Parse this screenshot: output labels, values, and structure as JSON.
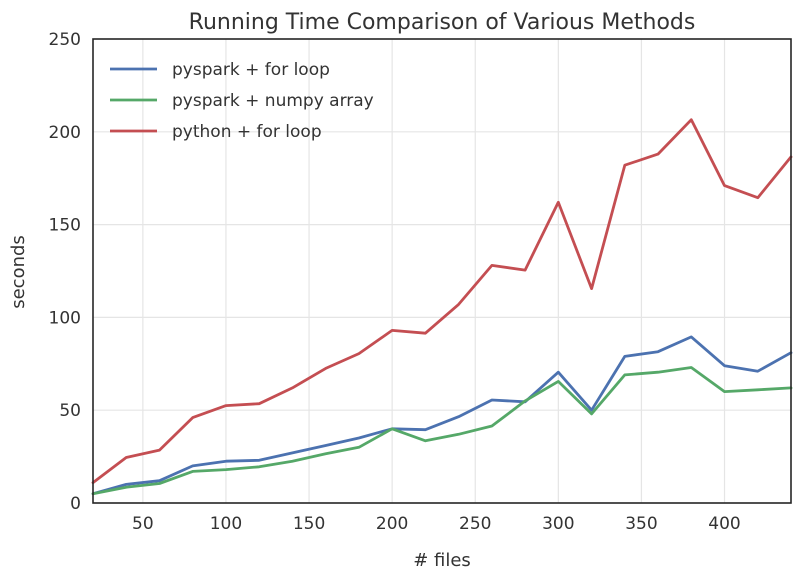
{
  "chart_data": {
    "type": "line",
    "title": "Running Time Comparison of Various Methods",
    "xlabel": "# files",
    "ylabel": "seconds",
    "xlim": [
      20,
      440
    ],
    "ylim": [
      0,
      250
    ],
    "x_ticks": [
      50,
      100,
      150,
      200,
      250,
      300,
      350,
      400
    ],
    "y_ticks": [
      0,
      50,
      100,
      150,
      200,
      250
    ],
    "grid": true,
    "legend_position": "top-left",
    "x": [
      20,
      40,
      60,
      80,
      100,
      120,
      140,
      160,
      180,
      200,
      220,
      240,
      260,
      280,
      300,
      320,
      340,
      360,
      380,
      400,
      420,
      440
    ],
    "series": [
      {
        "name": "pyspark + for loop",
        "color": "#4c72b0",
        "values": [
          5,
          10,
          12,
          20,
          22.5,
          23,
          27,
          31,
          35,
          40,
          39.5,
          46.5,
          55.5,
          54.5,
          70.5,
          50,
          79,
          81.5,
          89.5,
          74,
          71,
          81
        ]
      },
      {
        "name": "pyspark + numpy array",
        "color": "#55a868",
        "values": [
          5,
          8.5,
          10.5,
          17,
          18,
          19.5,
          22.5,
          26.5,
          30,
          40,
          33.5,
          37,
          41.5,
          55,
          65.5,
          48,
          69,
          70.5,
          73,
          60,
          61,
          62
        ]
      },
      {
        "name": "python + for loop",
        "color": "#c44e52",
        "values": [
          11,
          24.5,
          28.5,
          46,
          52.5,
          53.5,
          62,
          72.5,
          80.5,
          93,
          91.5,
          107,
          128,
          125.5,
          162,
          115.5,
          182,
          188,
          206.5,
          171,
          164.5,
          186.5
        ]
      }
    ]
  }
}
